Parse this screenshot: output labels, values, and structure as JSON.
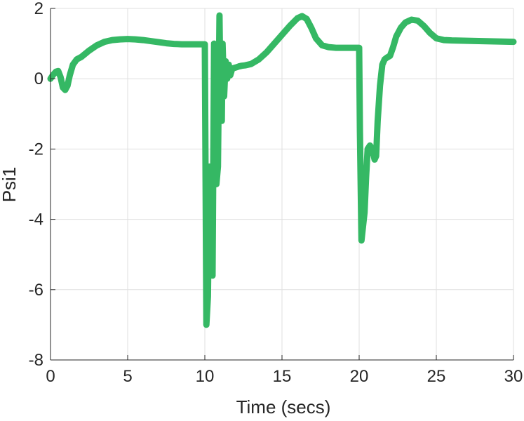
{
  "chart_data": {
    "type": "line",
    "xlabel": "Time (secs)",
    "ylabel": "Psi1",
    "xlim": [
      0,
      30
    ],
    "ylim": [
      -8,
      2
    ],
    "xticks": [
      0,
      5,
      10,
      15,
      20,
      25,
      30
    ],
    "yticks": [
      -8,
      -6,
      -4,
      -2,
      0,
      2
    ],
    "xtick_labels": [
      "0",
      "5",
      "10",
      "15",
      "20",
      "25",
      "30"
    ],
    "ytick_labels": [
      "-8",
      "-6",
      "-4",
      "-2",
      "0",
      "2"
    ],
    "grid": true,
    "line_color": "#35b864",
    "series": [
      {
        "x": [
          0,
          0.15,
          0.35,
          0.5,
          0.65,
          0.8,
          0.95,
          1.1,
          1.25,
          1.45,
          1.7,
          2.0,
          2.5,
          3.0,
          3.5,
          4.0,
          4.5,
          5.0,
          5.5,
          6.0,
          6.5,
          7.0,
          7.5,
          8.0,
          8.5,
          9.0,
          9.5,
          9.9,
          10.0,
          10.05,
          10.1,
          10.2,
          10.3,
          10.35,
          10.4,
          10.45,
          10.5,
          10.6,
          10.65,
          10.75,
          10.85,
          10.95,
          11.0,
          11.1,
          11.15,
          11.25,
          11.35,
          11.45,
          11.55,
          11.65,
          11.75,
          11.85,
          12.0,
          12.2,
          12.4,
          12.6,
          12.8,
          13.0,
          13.5,
          14.0,
          14.5,
          15.0,
          15.5,
          16.0,
          16.3,
          16.6,
          16.9,
          17.2,
          17.6,
          18.0,
          18.5,
          19.0,
          19.5,
          19.9,
          20.0,
          20.05,
          20.15,
          20.25,
          20.35,
          20.45,
          20.55,
          20.7,
          20.85,
          21.0,
          21.1,
          21.2,
          21.35,
          21.5,
          21.65,
          21.8,
          22.0,
          22.2,
          22.4,
          22.7,
          23.0,
          23.4,
          23.8,
          24.2,
          24.6,
          25.0,
          25.5,
          26.0,
          27.0,
          28.0,
          29.0,
          30.0
        ],
        "y": [
          0,
          0.1,
          0.2,
          0.22,
          0.05,
          -0.25,
          -0.32,
          -0.2,
          0.1,
          0.4,
          0.55,
          0.62,
          0.8,
          0.95,
          1.05,
          1.1,
          1.12,
          1.13,
          1.12,
          1.1,
          1.07,
          1.04,
          1.01,
          0.99,
          0.98,
          0.98,
          0.98,
          0.98,
          0.98,
          -3.0,
          -7.0,
          -6.2,
          -2.5,
          -3.5,
          -5.5,
          -2.6,
          -5.6,
          1.0,
          -1.0,
          -3.0,
          -2.5,
          1.8,
          0.0,
          -1.2,
          1.0,
          -0.5,
          0.5,
          0.0,
          0.4,
          0.1,
          0.25,
          0.3,
          0.32,
          0.35,
          0.37,
          0.38,
          0.4,
          0.42,
          0.55,
          0.75,
          1.0,
          1.25,
          1.5,
          1.72,
          1.78,
          1.7,
          1.45,
          1.15,
          0.95,
          0.9,
          0.88,
          0.88,
          0.88,
          0.88,
          0.88,
          -1.5,
          -4.6,
          -4.2,
          -3.8,
          -2.8,
          -2.0,
          -1.9,
          -2.0,
          -2.3,
          -2.2,
          -1.2,
          -0.2,
          0.4,
          0.55,
          0.6,
          0.65,
          0.9,
          1.2,
          1.45,
          1.6,
          1.68,
          1.65,
          1.5,
          1.3,
          1.15,
          1.1,
          1.09,
          1.08,
          1.07,
          1.06,
          1.05
        ]
      }
    ]
  }
}
